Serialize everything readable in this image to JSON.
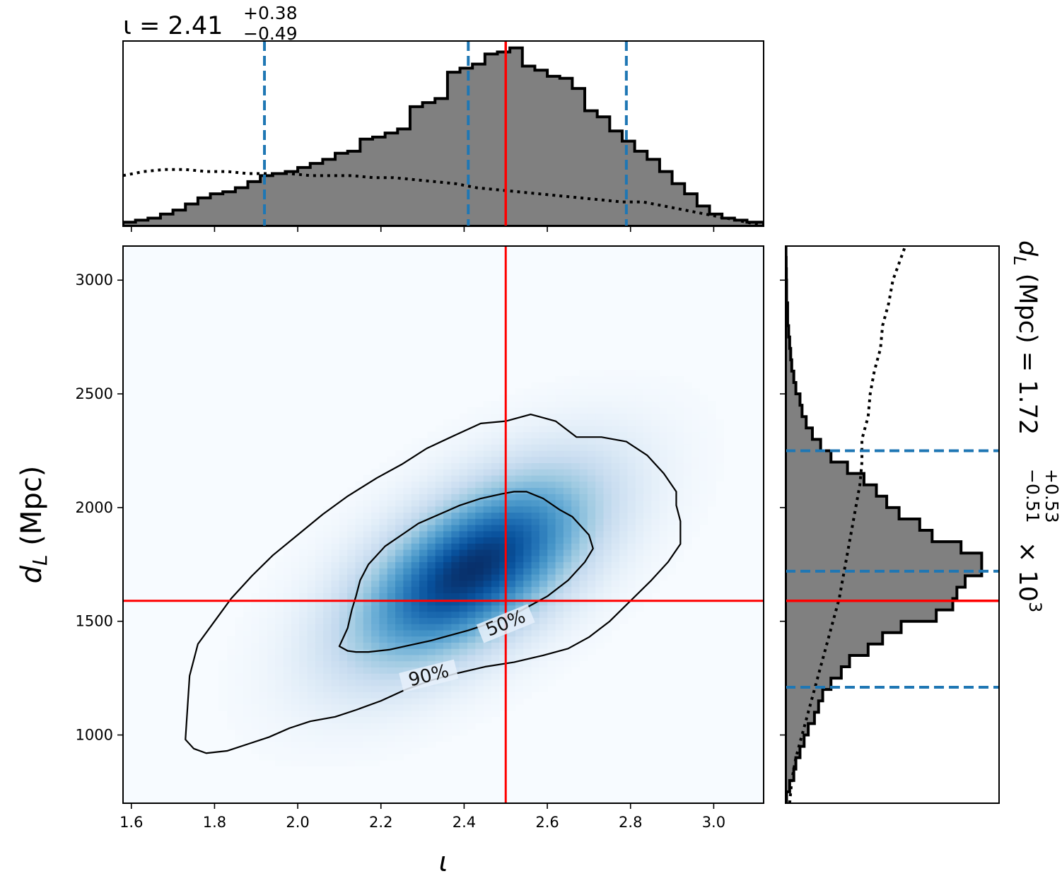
{
  "colors": {
    "truth": "#ff0000",
    "quantile": "#1f77b4",
    "hist_fill": "#808080",
    "hist_edge": "#000000",
    "density_colormap": "Blues",
    "contour": "#000000"
  },
  "chart_data": [
    {
      "panel": "marginal-top",
      "type": "histogram",
      "parameter": "ι",
      "title": {
        "prefix": "ι = ",
        "median": "2.41",
        "upper": "+0.38",
        "lower": "−0.49"
      },
      "xlim": [
        1.58,
        3.12
      ],
      "bin_edges": [
        1.58,
        1.61,
        1.64,
        1.67,
        1.7,
        1.73,
        1.76,
        1.79,
        1.82,
        1.85,
        1.88,
        1.91,
        1.94,
        1.97,
        2.0,
        2.03,
        2.06,
        2.09,
        2.12,
        2.15,
        2.18,
        2.21,
        2.24,
        2.27,
        2.3,
        2.33,
        2.36,
        2.39,
        2.42,
        2.45,
        2.48,
        2.51,
        2.54,
        2.57,
        2.6,
        2.63,
        2.66,
        2.69,
        2.72,
        2.75,
        2.78,
        2.81,
        2.84,
        2.87,
        2.9,
        2.93,
        2.96,
        2.99,
        3.02,
        3.05,
        3.08,
        3.12
      ],
      "counts": [
        0.02,
        0.03,
        0.04,
        0.06,
        0.08,
        0.11,
        0.14,
        0.16,
        0.17,
        0.19,
        0.22,
        0.25,
        0.26,
        0.27,
        0.29,
        0.31,
        0.33,
        0.36,
        0.37,
        0.43,
        0.44,
        0.46,
        0.48,
        0.59,
        0.61,
        0.63,
        0.76,
        0.78,
        0.8,
        0.85,
        0.86,
        0.88,
        0.79,
        0.77,
        0.74,
        0.73,
        0.68,
        0.57,
        0.54,
        0.47,
        0.42,
        0.37,
        0.33,
        0.27,
        0.21,
        0.16,
        0.1,
        0.06,
        0.04,
        0.03,
        0.02
      ],
      "prior_x": [
        1.58,
        1.63,
        1.68,
        1.73,
        1.78,
        1.83,
        1.88,
        1.93,
        1.98,
        2.03,
        2.08,
        2.13,
        2.18,
        2.23,
        2.28,
        2.33,
        2.38,
        2.43,
        2.48,
        2.53,
        2.58,
        2.63,
        2.68,
        2.73,
        2.78,
        2.83,
        2.88,
        2.93,
        2.98,
        3.03,
        3.08,
        3.12
      ],
      "prior_y": [
        0.25,
        0.27,
        0.28,
        0.28,
        0.27,
        0.27,
        0.26,
        0.26,
        0.26,
        0.25,
        0.25,
        0.25,
        0.24,
        0.24,
        0.23,
        0.22,
        0.21,
        0.19,
        0.18,
        0.17,
        0.16,
        0.15,
        0.14,
        0.13,
        0.12,
        0.12,
        0.1,
        0.08,
        0.06,
        0.04,
        0.02,
        0.0
      ],
      "quantiles": [
        1.92,
        2.41,
        2.79
      ],
      "truth": 2.5
    },
    {
      "panel": "joint",
      "type": "heatmap",
      "xlabel": "ι",
      "ylabel": "d",
      "ylabel_sub": "L",
      "ylabel_unit": " (Mpc)",
      "xlim": [
        1.58,
        3.12
      ],
      "ylim": [
        700,
        3150
      ],
      "xticks": [
        "1.6",
        "1.8",
        "2.0",
        "2.2",
        "2.4",
        "2.6",
        "2.8",
        "3.0"
      ],
      "yticks": [
        "1000",
        "1500",
        "2000",
        "2500",
        "3000"
      ],
      "density": {
        "mean": [
          2.42,
          1730
        ],
        "sigma": [
          0.2,
          290
        ],
        "correlation": 0.6
      },
      "contours": [
        {
          "label": "50%",
          "x": [
            2.1,
            2.12,
            2.14,
            2.17,
            2.22,
            2.27,
            2.32,
            2.36,
            2.41,
            2.46,
            2.51,
            2.55,
            2.6,
            2.65,
            2.69,
            2.71,
            2.7,
            2.68,
            2.66,
            2.63,
            2.59,
            2.55,
            2.52,
            2.49,
            2.44,
            2.39,
            2.34,
            2.29,
            2.25,
            2.21,
            2.17,
            2.15,
            2.14,
            2.13,
            2.12,
            2.1
          ],
          "y": [
            1390,
            1370,
            1365,
            1365,
            1375,
            1395,
            1415,
            1435,
            1460,
            1490,
            1520,
            1560,
            1610,
            1680,
            1760,
            1820,
            1880,
            1920,
            1960,
            1990,
            2040,
            2070,
            2070,
            2060,
            2040,
            2010,
            1970,
            1930,
            1880,
            1830,
            1750,
            1680,
            1610,
            1550,
            1470,
            1390
          ]
        },
        {
          "label": "90%",
          "x": [
            1.73,
            1.75,
            1.78,
            1.83,
            1.88,
            1.93,
            1.98,
            2.03,
            2.09,
            2.14,
            2.2,
            2.26,
            2.32,
            2.38,
            2.45,
            2.52,
            2.59,
            2.65,
            2.7,
            2.75,
            2.8,
            2.85,
            2.89,
            2.92,
            2.92,
            2.91,
            2.91,
            2.88,
            2.84,
            2.79,
            2.73,
            2.67,
            2.62,
            2.56,
            2.5,
            2.44,
            2.38,
            2.31,
            2.25,
            2.19,
            2.12,
            2.06,
            2.0,
            1.94,
            1.89,
            1.84,
            1.8,
            1.76,
            1.74,
            1.73
          ],
          "y": [
            980,
            940,
            920,
            930,
            960,
            990,
            1030,
            1060,
            1080,
            1110,
            1150,
            1200,
            1240,
            1270,
            1300,
            1320,
            1350,
            1380,
            1430,
            1500,
            1590,
            1680,
            1760,
            1840,
            1940,
            2010,
            2070,
            2150,
            2230,
            2290,
            2310,
            2310,
            2380,
            2410,
            2380,
            2370,
            2320,
            2260,
            2190,
            2130,
            2050,
            1970,
            1880,
            1790,
            1700,
            1600,
            1500,
            1400,
            1260,
            980
          ]
        }
      ],
      "truth": [
        2.5,
        1590
      ]
    },
    {
      "panel": "marginal-right",
      "type": "histogram",
      "parameter": "d_L",
      "title": {
        "prefix": "d",
        "sub": "L",
        "mid": " (Mpc) = 1.72",
        "upper": "+0.53",
        "lower": "−0.51",
        "suffix": " × 10",
        "exp": "3"
      },
      "ylim": [
        700,
        3150
      ],
      "bin_edges": [
        700,
        750,
        800,
        850,
        900,
        950,
        1000,
        1050,
        1100,
        1150,
        1200,
        1250,
        1300,
        1350,
        1400,
        1450,
        1500,
        1550,
        1600,
        1650,
        1700,
        1750,
        1800,
        1850,
        1900,
        1950,
        2000,
        2050,
        2100,
        2150,
        2200,
        2250,
        2300,
        2350,
        2400,
        2450,
        2500,
        2550,
        2600,
        2650,
        2700,
        2750,
        2800,
        2850,
        2900,
        2950,
        3000,
        3050,
        3100,
        3150
      ],
      "counts": [
        0.005,
        0.02,
        0.04,
        0.05,
        0.07,
        0.09,
        0.11,
        0.14,
        0.16,
        0.18,
        0.22,
        0.27,
        0.31,
        0.4,
        0.47,
        0.56,
        0.73,
        0.81,
        0.83,
        0.87,
        0.95,
        0.95,
        0.85,
        0.71,
        0.65,
        0.55,
        0.49,
        0.44,
        0.38,
        0.3,
        0.22,
        0.17,
        0.13,
        0.1,
        0.08,
        0.07,
        0.05,
        0.04,
        0.03,
        0.025,
        0.02,
        0.015,
        0.01,
        0.01,
        0.005,
        0.005,
        0.004,
        0.003,
        0.002
      ],
      "prior_y": [
        700,
        800,
        900,
        1000,
        1100,
        1200,
        1300,
        1400,
        1500,
        1600,
        1700,
        1800,
        1900,
        2000,
        2100,
        2200,
        2300,
        2400,
        2500,
        2600,
        2700,
        2800,
        2900,
        3000,
        3100,
        3150
      ],
      "prior_x": [
        0.02,
        0.03,
        0.05,
        0.08,
        0.11,
        0.14,
        0.17,
        0.2,
        0.23,
        0.26,
        0.28,
        0.3,
        0.32,
        0.34,
        0.36,
        0.37,
        0.37,
        0.4,
        0.41,
        0.43,
        0.46,
        0.47,
        0.5,
        0.52,
        0.56,
        0.58
      ],
      "quantiles": [
        1210,
        1720,
        2250
      ],
      "truth": 1590
    }
  ]
}
